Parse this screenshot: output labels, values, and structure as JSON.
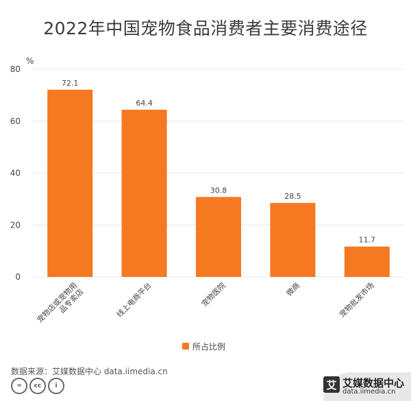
{
  "page": {
    "title": "2022年中国宠物食品消费者主要消费途径",
    "source": "数据来源：艾媒数据中心 data.iimedia.cn",
    "license_icons": [
      "cc-equal-icon",
      "cc-logo-icon",
      "person-icon"
    ],
    "license_text": [
      "=",
      "cc",
      "i"
    ],
    "brand": {
      "logo_char": "艾",
      "name": "艾媒数据中心",
      "url": "data.iimedia.cn"
    }
  },
  "chart_data": {
    "type": "bar",
    "title": "2022年中国宠物食品消费者主要消费途径",
    "ylabel": "%",
    "xlabel": "",
    "ylim": [
      0,
      80
    ],
    "yticks": [
      0,
      20,
      40,
      60,
      80
    ],
    "categories": [
      "宠物店或宠物用品专卖店",
      "线上电商平台",
      "宠物医院",
      "微商",
      "宠物批发市场"
    ],
    "category_lines": [
      [
        "宠物店或宠物用",
        "品专卖店"
      ],
      [
        "线上电商平台"
      ],
      [
        "宠物医院"
      ],
      [
        "微商"
      ],
      [
        "宠物批发市场"
      ]
    ],
    "series": [
      {
        "name": "所占比例",
        "values": [
          72.1,
          64.4,
          30.8,
          28.5,
          11.7
        ]
      }
    ],
    "colors": {
      "bar": "#f47920",
      "grid": "#e6e6e6"
    },
    "grid": true,
    "legend": "bottom-center"
  }
}
